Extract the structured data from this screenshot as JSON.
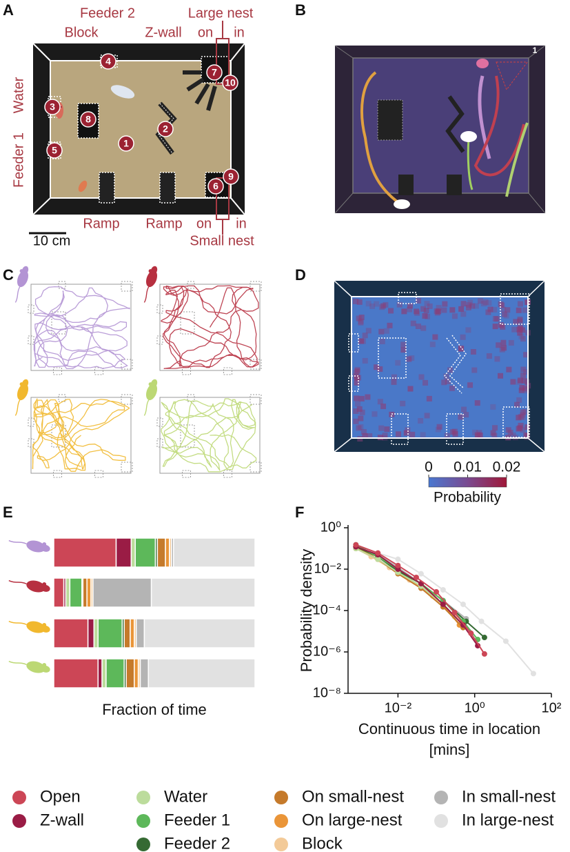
{
  "panel_labels": [
    "A",
    "B",
    "C",
    "D",
    "E",
    "F"
  ],
  "panel_a": {
    "labels": [
      "Feeder 2",
      "Block",
      "Z-wall",
      "Large nest",
      "on",
      "in",
      "Water",
      "Feeder 1",
      "Ramp",
      "Ramp",
      "on",
      "in",
      "Small nest"
    ],
    "scale_bar": "10 cm",
    "markers": [
      1,
      2,
      3,
      4,
      5,
      6,
      7,
      8,
      9,
      10
    ]
  },
  "panel_b": {
    "track_label": 1
  },
  "panel_d": {
    "colorbar": {
      "lim": [
        0,
        0.02
      ],
      "ticks": [
        0,
        0.01,
        0.02
      ],
      "label": "Probability"
    }
  },
  "chart_data": [
    {
      "type": "stacked_bar_h",
      "xlabel": "Fraction of time",
      "categories": [
        null,
        null,
        null,
        null
      ],
      "xlim": [
        0,
        1
      ],
      "series": [
        {
          "name": "Open",
          "color": "#cc4656",
          "values": [
            0.31,
            0.05,
            0.17,
            0.22
          ]
        },
        {
          "name": "Z-wall",
          "color": "#9a1c45",
          "values": [
            0.075,
            0.01,
            0.03,
            0.02
          ]
        },
        {
          "name": "Water",
          "color": "#bcdc9c",
          "values": [
            0.02,
            0.02,
            0.02,
            0.02
          ]
        },
        {
          "name": "Feeder 1",
          "color": "#5db85a",
          "values": [
            0.1,
            0.06,
            0.12,
            0.09
          ]
        },
        {
          "name": "Feeder 2",
          "color": "#356a33",
          "values": [
            0.01,
            0.005,
            0.01,
            0.01
          ]
        },
        {
          "name": "On small-nest",
          "color": "#c57a2b",
          "values": [
            0.04,
            0.02,
            0.03,
            0.04
          ]
        },
        {
          "name": "On large-nest",
          "color": "#ea9538",
          "values": [
            0.02,
            0.02,
            0.02,
            0.02
          ]
        },
        {
          "name": "Block",
          "color": "#f3ca98",
          "values": [
            0.01,
            0.01,
            0.01,
            0.01
          ]
        },
        {
          "name": "In small-nest",
          "color": "#b4b4b4",
          "values": [
            0.01,
            0.29,
            0.04,
            0.04
          ]
        },
        {
          "name": "In large-nest",
          "color": "#e1e1e1",
          "values": [
            0.405,
            0.515,
            0.55,
            0.53
          ]
        }
      ]
    },
    {
      "type": "line",
      "log_x": true,
      "log_y": true,
      "ylabel": "Probability density",
      "xlabel": [
        "Continuous time in location",
        "[mins]"
      ],
      "xlim": [
        0.0005,
        100
      ],
      "ylim": [
        1e-08,
        1
      ],
      "xticks": [
        {
          "value": 0.01,
          "label": "10⁻²"
        },
        {
          "value": 1,
          "label": "10⁰"
        },
        {
          "value": 100,
          "label": "10²"
        }
      ],
      "yticks": [
        {
          "value": 1,
          "label": "10⁰"
        },
        {
          "value": 0.01,
          "label": "10⁻²"
        },
        {
          "value": 0.0001,
          "label": "10⁻⁴"
        },
        {
          "value": 1e-06,
          "label": "10⁻⁶"
        },
        {
          "value": 1e-08,
          "label": "10⁻⁸"
        }
      ],
      "series": [
        {
          "x": [
            0.0008,
            0.003,
            0.01,
            0.03,
            0.1,
            0.3,
            0.8,
            1.8
          ],
          "values": [
            0.15,
            0.06,
            0.015,
            0.004,
            0.0008,
            8e-05,
            8e-06,
            8e-07
          ]
        },
        {
          "x": [
            0.0008,
            0.003,
            0.01,
            0.04,
            0.15,
            0.5,
            1.2
          ],
          "values": [
            0.12,
            0.05,
            0.01,
            0.002,
            0.0002,
            2e-05,
            2e-06
          ]
        },
        {
          "x": [
            0.0008,
            0.003,
            0.01,
            0.04,
            0.15,
            0.5
          ],
          "values": [
            0.1,
            0.03,
            0.007,
            0.0015,
            0.0002,
            2e-05
          ]
        },
        {
          "x": [
            0.0008,
            0.003,
            0.01,
            0.04,
            0.15,
            0.5,
            1.2
          ],
          "values": [
            0.15,
            0.04,
            0.01,
            0.002,
            0.0003,
            3e-05,
            4e-06
          ]
        },
        {
          "x": [
            0.0008,
            0.003,
            0.01,
            0.04,
            0.15,
            0.6,
            1.8
          ],
          "values": [
            0.12,
            0.04,
            0.008,
            0.002,
            0.0003,
            3e-05,
            5e-06
          ]
        },
        {
          "x": [
            0.0008,
            0.003,
            0.01,
            0.04,
            0.15,
            0.5
          ],
          "values": [
            0.1,
            0.03,
            0.006,
            0.0012,
            0.00015,
            1.5e-05
          ]
        },
        {
          "x": [
            0.0008,
            0.003,
            0.01,
            0.04,
            0.15,
            0.4
          ],
          "values": [
            0.12,
            0.03,
            0.007,
            0.0015,
            0.0002,
            2e-05
          ]
        },
        {
          "x": [
            0.0008,
            0.002,
            0.006,
            0.02,
            0.08,
            0.3
          ],
          "values": [
            0.1,
            0.04,
            0.012,
            0.003,
            0.0005,
            5e-05
          ]
        },
        {
          "x": [
            0.0008,
            0.003,
            0.01,
            0.04,
            0.15,
            0.6
          ],
          "values": [
            0.12,
            0.05,
            0.012,
            0.002,
            0.0003,
            4e-05
          ]
        },
        {
          "x": [
            0.0008,
            0.003,
            0.01,
            0.04,
            0.15,
            0.5,
            1.5,
            6.5,
            34
          ],
          "values": [
            0.15,
            0.06,
            0.03,
            0.006,
            0.001,
            0.0002,
            3e-05,
            3.3e-06,
            9e-08
          ]
        }
      ]
    }
  ]
}
